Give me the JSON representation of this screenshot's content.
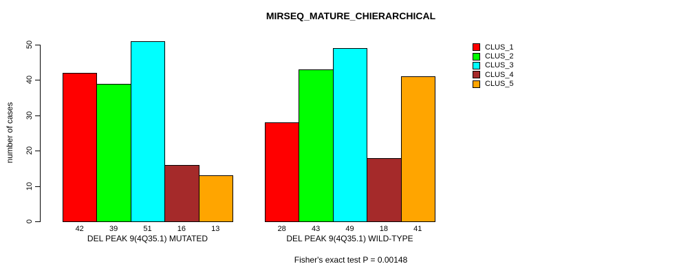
{
  "chart_data": {
    "type": "bar",
    "title": "MIRSEQ_MATURE_CHIERARCHICAL",
    "ylabel": "number of cases",
    "xlabel": "",
    "ylim": [
      0,
      50
    ],
    "yticks": [
      0,
      10,
      20,
      30,
      40,
      50
    ],
    "grid": false,
    "legend_position": "right",
    "bar_value_labels": true,
    "categories": [
      "DEL PEAK 9(4Q35.1) MUTATED",
      "DEL PEAK 9(4Q35.1) WILD-TYPE"
    ],
    "series": [
      {
        "name": "CLUS_1",
        "color": "#FF0000",
        "values": [
          42,
          28
        ]
      },
      {
        "name": "CLUS_2",
        "color": "#00FF00",
        "values": [
          39,
          43
        ]
      },
      {
        "name": "CLUS_3",
        "color": "#00FFFF",
        "values": [
          51,
          49
        ]
      },
      {
        "name": "CLUS_4",
        "color": "#A52A2A",
        "values": [
          16,
          18
        ]
      },
      {
        "name": "CLUS_5",
        "color": "#FFA500",
        "values": [
          13,
          41
        ]
      }
    ],
    "annotation": "Fisher's exact test P = 0.00148"
  }
}
